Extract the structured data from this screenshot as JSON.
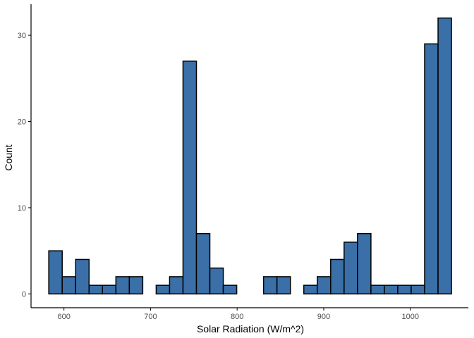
{
  "chart_data": {
    "type": "bar",
    "subtype": "histogram",
    "xlabel": "Solar Radiation (W/m^2)",
    "ylabel": "Count",
    "xlim": [
      562,
      1067
    ],
    "ylim": [
      -1.6,
      33.6
    ],
    "bin_width": 15.5,
    "bins": [
      {
        "x0": 582.5,
        "x1": 598.0,
        "count": 5
      },
      {
        "x0": 598.0,
        "x1": 613.5,
        "count": 2
      },
      {
        "x0": 613.5,
        "x1": 629.0,
        "count": 4
      },
      {
        "x0": 629.0,
        "x1": 644.5,
        "count": 1
      },
      {
        "x0": 644.5,
        "x1": 660.0,
        "count": 1
      },
      {
        "x0": 660.0,
        "x1": 675.5,
        "count": 2
      },
      {
        "x0": 675.5,
        "x1": 691.0,
        "count": 2
      },
      {
        "x0": 691.0,
        "x1": 706.5,
        "count": 0
      },
      {
        "x0": 706.5,
        "x1": 722.0,
        "count": 1
      },
      {
        "x0": 722.0,
        "x1": 737.5,
        "count": 2
      },
      {
        "x0": 737.5,
        "x1": 753.0,
        "count": 27
      },
      {
        "x0": 753.0,
        "x1": 768.5,
        "count": 7
      },
      {
        "x0": 768.5,
        "x1": 784.0,
        "count": 3
      },
      {
        "x0": 784.0,
        "x1": 799.5,
        "count": 1
      },
      {
        "x0": 799.5,
        "x1": 815.0,
        "count": 0
      },
      {
        "x0": 815.0,
        "x1": 830.5,
        "count": 0
      },
      {
        "x0": 830.5,
        "x1": 846.0,
        "count": 2
      },
      {
        "x0": 846.0,
        "x1": 861.5,
        "count": 2
      },
      {
        "x0": 861.5,
        "x1": 877.0,
        "count": 0
      },
      {
        "x0": 877.0,
        "x1": 892.5,
        "count": 1
      },
      {
        "x0": 892.5,
        "x1": 908.0,
        "count": 2
      },
      {
        "x0": 908.0,
        "x1": 923.5,
        "count": 4
      },
      {
        "x0": 923.5,
        "x1": 939.0,
        "count": 6
      },
      {
        "x0": 939.0,
        "x1": 954.5,
        "count": 7
      },
      {
        "x0": 954.5,
        "x1": 970.0,
        "count": 1
      },
      {
        "x0": 970.0,
        "x1": 985.5,
        "count": 1
      },
      {
        "x0": 985.5,
        "x1": 1001.0,
        "count": 1
      },
      {
        "x0": 1001.0,
        "x1": 1016.5,
        "count": 1
      },
      {
        "x0": 1016.5,
        "x1": 1032.0,
        "count": 29
      },
      {
        "x0": 1032.0,
        "x1": 1047.5,
        "count": 32
      }
    ],
    "x_ticks": [
      600,
      700,
      800,
      900,
      1000
    ],
    "y_ticks": [
      0,
      10,
      20,
      30
    ],
    "grid": false,
    "legend": "none",
    "colors": {
      "fill": "#3a6fa8",
      "stroke": "#000000",
      "axis": "#000000",
      "tick_text": "#4d4d4d"
    }
  }
}
